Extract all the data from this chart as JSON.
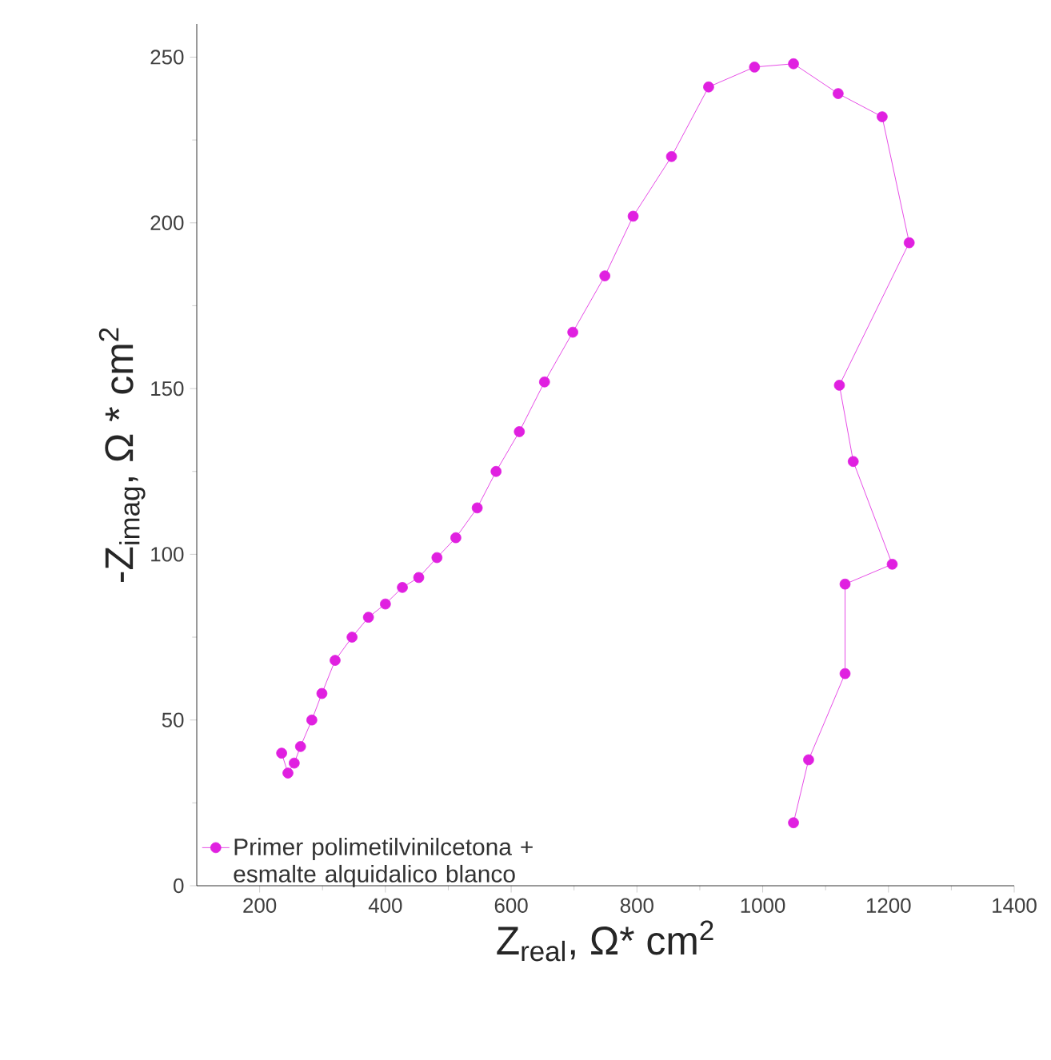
{
  "chart_data": {
    "type": "line",
    "xlabel": "Z$_{real}$, Ω* cm$^{2}$",
    "ylabel": "-Z$_{imag}$, Ω * cm$^{2}$",
    "xlim": [
      100,
      1400
    ],
    "ylim": [
      0,
      260
    ],
    "xticks": [
      200,
      400,
      600,
      800,
      1000,
      1200,
      1400
    ],
    "yticks": [
      0,
      50,
      100,
      150,
      200,
      250
    ],
    "marker": "circle",
    "legend": "bottom left",
    "grid": false,
    "series": [
      {
        "name": "Primer polimetilvinilcetona + esmalte alquidalico blanco",
        "color": "#e020e0",
        "x": [
          235,
          245,
          255,
          265,
          283,
          299,
          320,
          347,
          373,
          400,
          427,
          453,
          482,
          512,
          546,
          576,
          613,
          653,
          698,
          749,
          794,
          855,
          914,
          987,
          1049,
          1120,
          1190,
          1233,
          1122,
          1144,
          1206,
          1131,
          1131,
          1073,
          1049
        ],
        "values": [
          40,
          34,
          37,
          42,
          50,
          58,
          68,
          75,
          81,
          85,
          90,
          93,
          99,
          105,
          114,
          125,
          137,
          152,
          167,
          184,
          202,
          220,
          241,
          247,
          248,
          239,
          232,
          194,
          151,
          128,
          97,
          91,
          64,
          38,
          19
        ]
      }
    ]
  }
}
